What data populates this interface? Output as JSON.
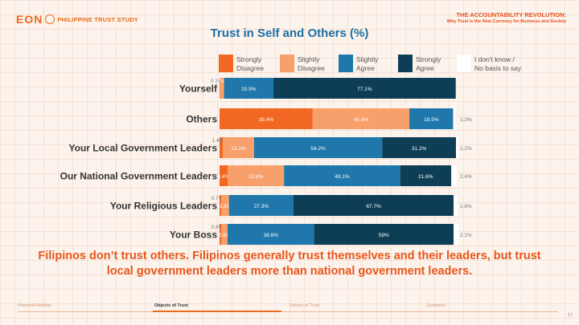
{
  "header": {
    "logo_text": "PHILIPPINE TRUST STUDY",
    "logo_mark": "EON",
    "report_title": "THE ACCOUNTABILITY REVOLUTION:",
    "report_subtitle": "Why Trust is the New Currency for Business and Society"
  },
  "caption": "Filipinos don’t trust others.  Filipinos generally trust themselves and their leaders, but trust local government leaders more than national government leaders.",
  "footer": {
    "nav": [
      "Personal Abilities",
      "Objects of Trust",
      "Drivers of Trust",
      "Synthesis"
    ],
    "active": "Objects of Trust",
    "page": "17"
  },
  "colors": {
    "strongly_disagree": "#f26822",
    "slightly_disagree": "#f7a06b",
    "slightly_agree": "#1f77ab",
    "strongly_agree": "#0e3e56",
    "dont_know": "#ffffff"
  },
  "chart_data": {
    "type": "bar",
    "orientation": "horizontal",
    "stacked": true,
    "title": "Trust in Self and Others (%)",
    "xlim": [
      0,
      100
    ],
    "legend_position": "top",
    "categories": [
      "Yourself",
      "Others",
      "Your Local Government Leaders",
      "Our National Government Leaders",
      "Your Religious Leaders",
      "Your Boss"
    ],
    "series": [
      {
        "name": "Strongly Disagree",
        "values": [
          0.2,
          39.4,
          1.4,
          3.4,
          0.7,
          0.8
        ],
        "labels": [
          "0.2%",
          "39.4%",
          "1.4%",
          "3.4%",
          "0.7%",
          "0.8%"
        ]
      },
      {
        "name": "Slightly Disagree",
        "values": [
          1.7,
          40.9,
          13.2,
          23.9,
          3.3,
          2.6
        ],
        "labels": [
          "1.7%",
          "40.9%",
          "13.2%",
          "23.9%",
          "3.3%",
          "2.6%"
        ]
      },
      {
        "name": "Slightly Agree",
        "values": [
          20.9,
          18.5,
          54.2,
          49.1,
          27.3,
          36.6
        ],
        "labels": [
          "20.9%",
          "18.5%",
          "54.2%",
          "49.1%",
          "27.3%",
          "36.6%"
        ]
      },
      {
        "name": "Strongly Agree",
        "values": [
          77.1,
          0,
          31.2,
          21.6,
          67.7,
          59
        ],
        "labels": [
          "77.1%",
          "",
          "31.2%",
          "21.6%",
          "67.7%",
          "59%"
        ]
      },
      {
        "name": "I don't know / No basis to say",
        "values": [
          0,
          1.2,
          1.2,
          2.4,
          1.6,
          2.1
        ],
        "labels": [
          "",
          "1.2%",
          "1.2%",
          "2.4%",
          "1.6%",
          "2.1%"
        ]
      }
    ]
  }
}
